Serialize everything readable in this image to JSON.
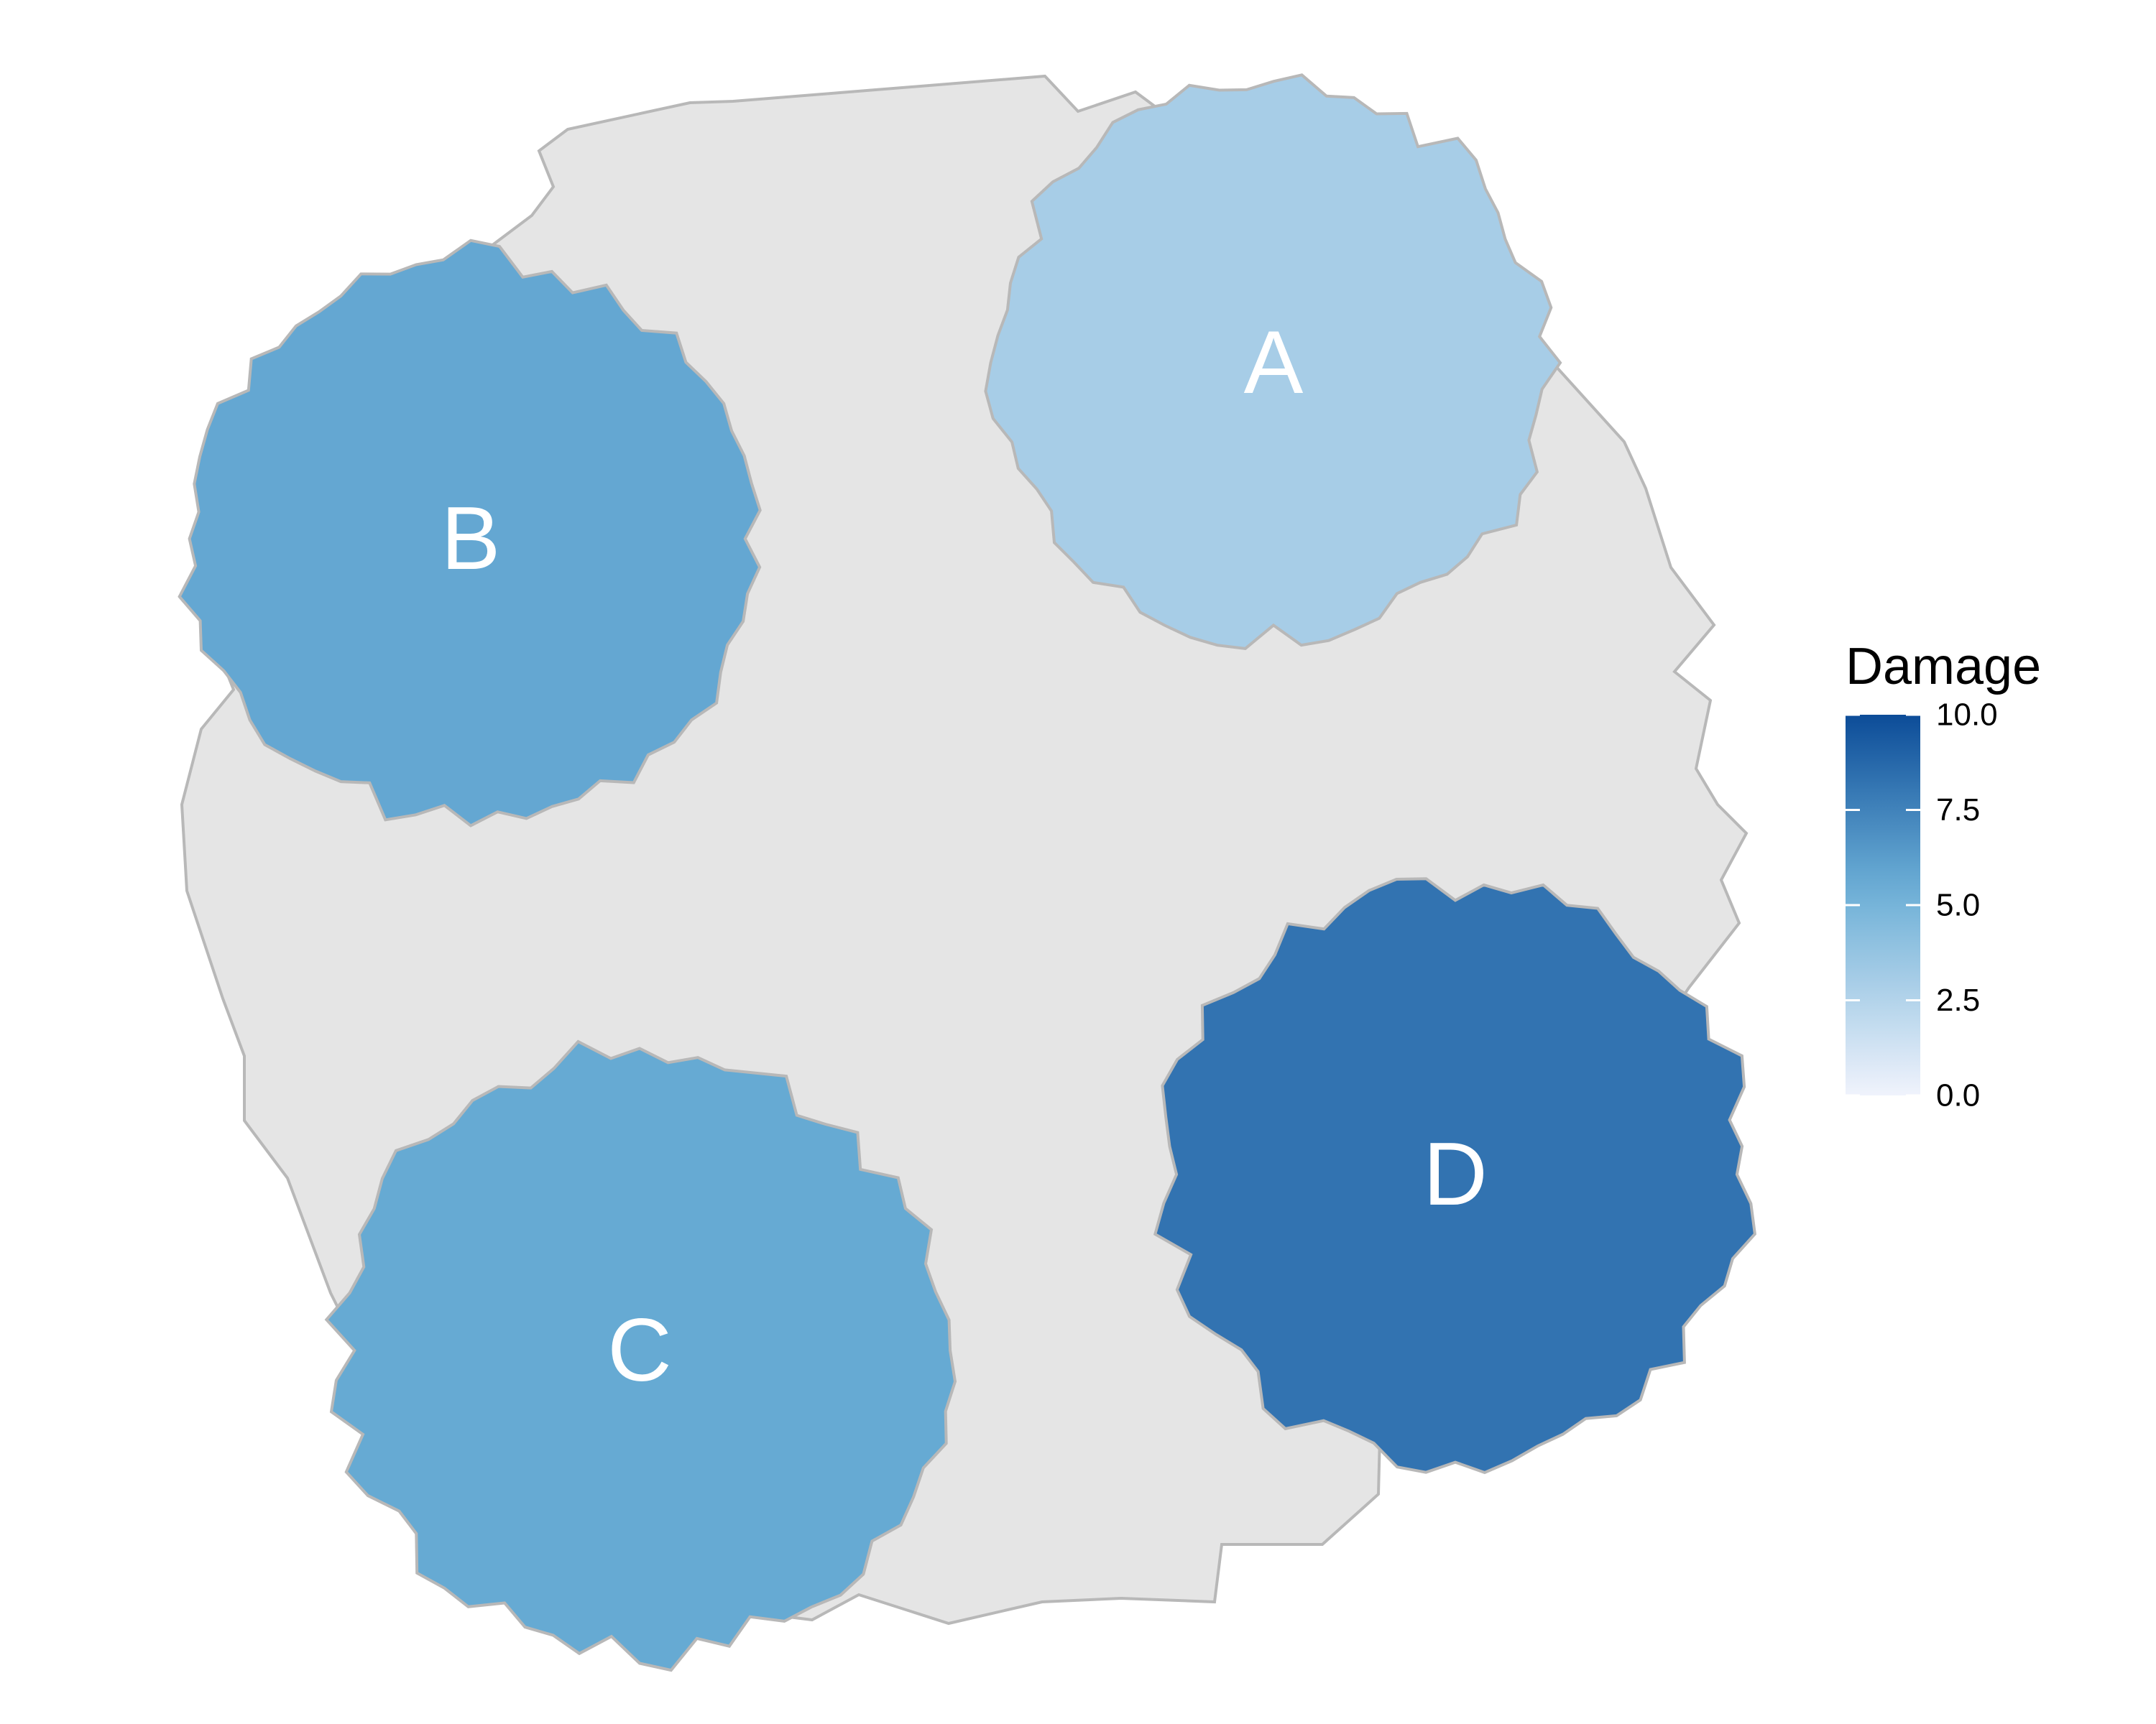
{
  "chart_data": {
    "type": "heatmap",
    "title": "",
    "regions": [
      {
        "label": "A",
        "damage": 3.0
      },
      {
        "label": "B",
        "damage": 5.8
      },
      {
        "label": "C",
        "damage": 5.7
      },
      {
        "label": "D",
        "damage": 8.2
      }
    ],
    "background_region": {
      "label": "",
      "fill": "#e5e5e5"
    },
    "legend": {
      "title": "Damage",
      "placement": "right",
      "range": [
        0.0,
        10.0
      ],
      "ticks": [
        "0.0",
        "2.5",
        "5.0",
        "7.5",
        "10.0"
      ],
      "tick_values": [
        0.0,
        2.5,
        5.0,
        7.5,
        10.0
      ],
      "color_low": "#f0f3fc",
      "color_high": "#0c4c98"
    },
    "colors": {
      "outline": "#b8b8b8",
      "label_text": "#ffffff"
    }
  }
}
